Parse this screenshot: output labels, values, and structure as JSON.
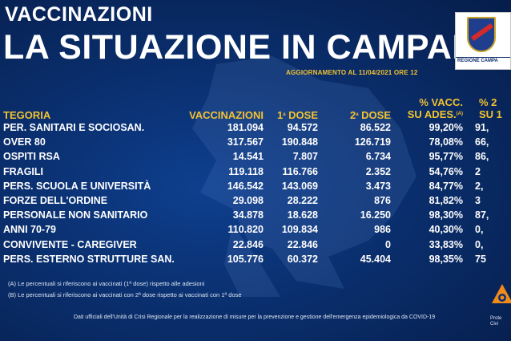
{
  "header": {
    "title_small": "VACCINAZIONI",
    "title_large": "LA SITUAZIONE IN CAMPANIA",
    "update": "AGGIORNAMENTO AL 11/04/2021 ORE 12",
    "logo_text": "REGIONE CAMPA"
  },
  "columns": {
    "category": "TEGORIA",
    "vaccinations": "VACCINAZIONI",
    "dose1": "1",
    "dose1_sup": "a",
    "dose1_rest": " DOSE",
    "dose2": "2",
    "dose2_sup": "a",
    "dose2_rest": " DOSE",
    "pct_vacc_line1": "% VACC.",
    "pct_vacc_line2": "SU ADES.",
    "pct_vacc_note": "(A)",
    "pct_dose2_line1": "% 2",
    "pct_dose2_line2": "SU 1"
  },
  "rows": [
    {
      "category": "PER. SANITARI E SOCIOSAN.",
      "vaccinations": "181.094",
      "dose1": "94.572",
      "dose2": "86.522",
      "pct_vacc": "99,20%",
      "pct_dose2": "91,"
    },
    {
      "category": "OVER 80",
      "vaccinations": "317.567",
      "dose1": "190.848",
      "dose2": "126.719",
      "pct_vacc": "78,08%",
      "pct_dose2": "66,"
    },
    {
      "category": "OSPITI RSA",
      "vaccinations": "14.541",
      "dose1": "7.807",
      "dose2": "6.734",
      "pct_vacc": "95,77%",
      "pct_dose2": "86,"
    },
    {
      "category": "FRAGILI",
      "vaccinations": "119.118",
      "dose1": "116.766",
      "dose2": "2.352",
      "pct_vacc": "54,76%",
      "pct_dose2": "2"
    },
    {
      "category": "PERS. SCUOLA E UNIVERSITÀ",
      "vaccinations": "146.542",
      "dose1": "143.069",
      "dose2": "3.473",
      "pct_vacc": "84,77%",
      "pct_dose2": "2,"
    },
    {
      "category": "FORZE DELL'ORDINE",
      "vaccinations": "29.098",
      "dose1": "28.222",
      "dose2": "876",
      "pct_vacc": "81,82%",
      "pct_dose2": "3"
    },
    {
      "category": "PERSONALE NON SANITARIO",
      "vaccinations": "34.878",
      "dose1": "18.628",
      "dose2": "16.250",
      "pct_vacc": "98,30%",
      "pct_dose2": "87,"
    },
    {
      "category": "ANNI 70-79",
      "vaccinations": "110.820",
      "dose1": "109.834",
      "dose2": "986",
      "pct_vacc": "40,30%",
      "pct_dose2": "0,"
    },
    {
      "category": "CONVIVENTE - CAREGIVER",
      "vaccinations": "22.846",
      "dose1": "22.846",
      "dose2": "0",
      "pct_vacc": "33,83%",
      "pct_dose2": "0,"
    },
    {
      "category": "PERS. ESTERNO STRUTTURE SAN.",
      "vaccinations": "105.776",
      "dose1": "60.372",
      "dose2": "45.404",
      "pct_vacc": "98,35%",
      "pct_dose2": "75"
    }
  ],
  "notes": [
    "(A) Le percentuali si riferiscono ai vaccinati (1ª dose) rispetto alle adesioni",
    "(B) Le percentuali si riferiscono ai vaccinati con 2ª dose rispetto ai vaccinati con 1ª dose"
  ],
  "source": "Dati ufficiali dell'Unità di Crisi Regionale per la realizzazione di misure per la prevenzione e gestione dell'emergenza epidemiologica da COVID-19",
  "protezione": "Prote",
  "protezione2": "Civi",
  "colors": {
    "background": "#0a2f6e",
    "accent_yellow": "#f2c230",
    "text": "#ffffff"
  }
}
